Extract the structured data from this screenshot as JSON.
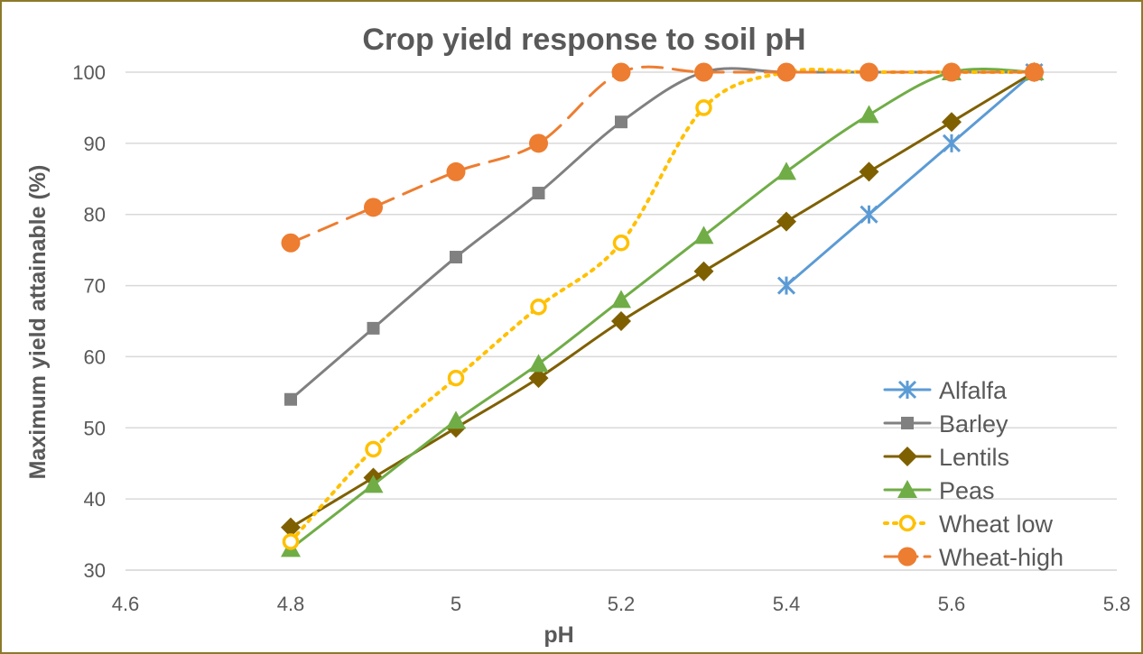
{
  "chart_data": {
    "type": "scatter",
    "title": "Crop yield response to soil pH",
    "xlabel": "pH",
    "ylabel": "Maximum yield attainable (%)",
    "xlim": [
      4.6,
      5.8
    ],
    "ylim": [
      30,
      100
    ],
    "xticks": [
      "4.6",
      "4.8",
      "5",
      "5.2",
      "5.4",
      "5.6",
      "5.8"
    ],
    "yticks": [
      "30",
      "40",
      "50",
      "60",
      "70",
      "80",
      "90",
      "100"
    ],
    "grid": "horizontal",
    "legend": "bottom-right",
    "series": [
      {
        "name": "Alfalfa",
        "color": "#5b9bd5",
        "marker": "x",
        "line": "solid",
        "x": [
          5.4,
          5.5,
          5.6,
          5.7
        ],
        "y": [
          70,
          80,
          90,
          100
        ]
      },
      {
        "name": "Barley",
        "color": "#808080",
        "marker": "square",
        "line": "solid",
        "x": [
          4.8,
          4.9,
          5.0,
          5.1,
          5.2,
          5.3,
          5.4,
          5.5,
          5.6,
          5.7
        ],
        "y": [
          54,
          64,
          74,
          83,
          93,
          100,
          100,
          100,
          100,
          100
        ]
      },
      {
        "name": "Lentils",
        "color": "#7f6000",
        "marker": "diamond",
        "line": "solid",
        "x": [
          4.8,
          4.9,
          5.0,
          5.1,
          5.2,
          5.3,
          5.4,
          5.5,
          5.6,
          5.7
        ],
        "y": [
          36,
          43,
          50,
          57,
          65,
          72,
          79,
          86,
          93,
          100
        ]
      },
      {
        "name": "Peas",
        "color": "#70ad47",
        "marker": "triangle",
        "line": "solid",
        "x": [
          4.8,
          4.9,
          5.0,
          5.1,
          5.2,
          5.3,
          5.4,
          5.5,
          5.6,
          5.7
        ],
        "y": [
          33,
          42,
          51,
          59,
          68,
          77,
          86,
          94,
          100,
          100
        ]
      },
      {
        "name": "Wheat low",
        "color": "#ffc000",
        "marker": "open-circle",
        "line": "dotted",
        "x": [
          4.8,
          4.9,
          5.0,
          5.1,
          5.2,
          5.3,
          5.4,
          5.5,
          5.6,
          5.7
        ],
        "y": [
          34,
          47,
          57,
          67,
          76,
          95,
          100,
          100,
          100,
          100
        ]
      },
      {
        "name": "Wheat-high",
        "color": "#ed7d31",
        "marker": "circle",
        "line": "dashed",
        "x": [
          4.8,
          4.9,
          5.0,
          5.1,
          5.2,
          5.3,
          5.4,
          5.5,
          5.6,
          5.7
        ],
        "y": [
          76,
          81,
          86,
          90,
          100,
          100,
          100,
          100,
          100,
          100
        ]
      }
    ]
  }
}
